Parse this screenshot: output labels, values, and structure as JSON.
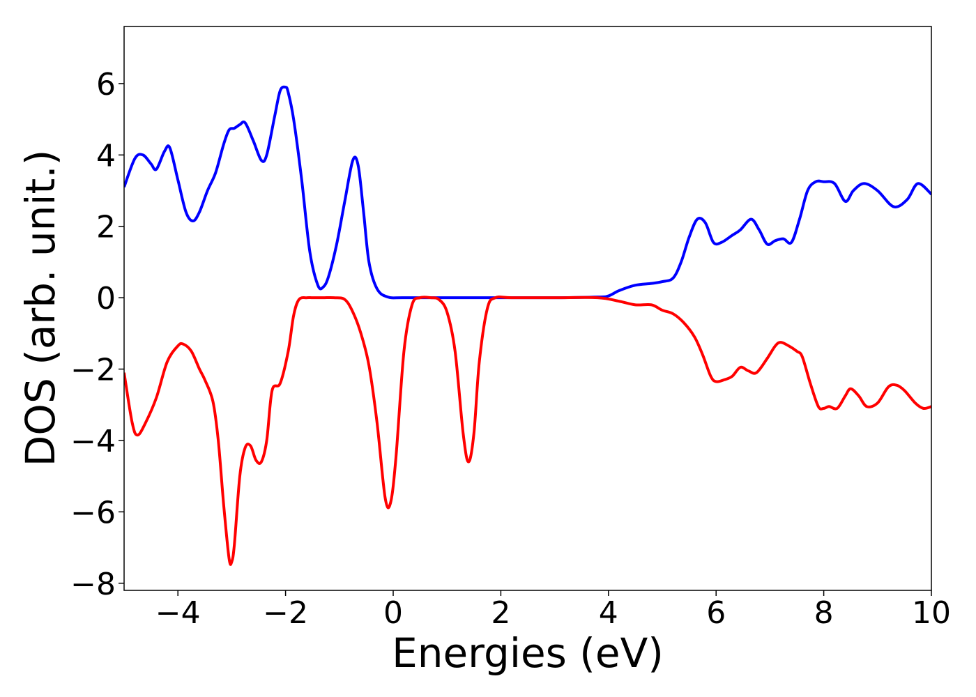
{
  "chart_data": {
    "type": "line",
    "title": "",
    "xlabel": "Energies (eV)",
    "ylabel": "DOS (arb. unit.)",
    "xlim": [
      -5,
      10
    ],
    "ylim": [
      -8.2,
      7.6
    ],
    "xticks": [
      -4,
      -2,
      0,
      2,
      4,
      6,
      8,
      10
    ],
    "yticks": [
      -8,
      -6,
      -4,
      -2,
      0,
      2,
      4,
      6
    ],
    "xtick_labels": [
      "−4",
      "−2",
      "0",
      "2",
      "4",
      "6",
      "8",
      "10"
    ],
    "ytick_labels": [
      "−8",
      "−6",
      "−4",
      "−2",
      "0",
      "2",
      "4",
      "6"
    ],
    "grid": false,
    "legend": false,
    "series": [
      {
        "color": "#0000ff",
        "x": [
          -5.0,
          -4.8,
          -4.65,
          -4.5,
          -4.4,
          -4.25,
          -4.15,
          -4.0,
          -3.85,
          -3.72,
          -3.6,
          -3.45,
          -3.3,
          -3.15,
          -3.05,
          -2.95,
          -2.85,
          -2.75,
          -2.6,
          -2.45,
          -2.35,
          -2.2,
          -2.1,
          -2.0,
          -1.95,
          -1.85,
          -1.7,
          -1.55,
          -1.4,
          -1.3,
          -1.2,
          -1.05,
          -0.9,
          -0.75,
          -0.65,
          -0.55,
          -0.45,
          -0.3,
          -0.1,
          0.2,
          1.0,
          2.0,
          3.0,
          3.8,
          4.0,
          4.2,
          4.5,
          4.8,
          5.0,
          5.2,
          5.35,
          5.5,
          5.65,
          5.8,
          5.95,
          6.1,
          6.3,
          6.45,
          6.65,
          6.8,
          6.95,
          7.1,
          7.25,
          7.4,
          7.55,
          7.7,
          7.85,
          8.0,
          8.2,
          8.4,
          8.55,
          8.75,
          9.0,
          9.3,
          9.55,
          9.75,
          10.0
        ],
        "y": [
          3.1,
          3.9,
          4.0,
          3.75,
          3.6,
          4.1,
          4.2,
          3.3,
          2.4,
          2.15,
          2.4,
          3.0,
          3.5,
          4.3,
          4.7,
          4.75,
          4.85,
          4.9,
          4.4,
          3.85,
          4.0,
          5.1,
          5.8,
          5.9,
          5.75,
          5.0,
          3.3,
          1.3,
          0.35,
          0.3,
          0.6,
          1.5,
          2.7,
          3.85,
          3.7,
          2.4,
          1.0,
          0.25,
          0.02,
          0.0,
          0.0,
          0.0,
          0.0,
          0.02,
          0.05,
          0.2,
          0.35,
          0.4,
          0.45,
          0.55,
          1.0,
          1.7,
          2.2,
          2.1,
          1.55,
          1.55,
          1.75,
          1.9,
          2.2,
          1.9,
          1.5,
          1.6,
          1.65,
          1.55,
          2.2,
          3.0,
          3.25,
          3.25,
          3.2,
          2.7,
          3.0,
          3.2,
          3.0,
          2.55,
          2.75,
          3.2,
          2.9
        ]
      },
      {
        "color": "#ff0000",
        "x": [
          -5.0,
          -4.85,
          -4.75,
          -4.6,
          -4.4,
          -4.2,
          -4.0,
          -3.9,
          -3.75,
          -3.6,
          -3.5,
          -3.35,
          -3.25,
          -3.15,
          -3.05,
          -3.0,
          -2.95,
          -2.85,
          -2.75,
          -2.65,
          -2.55,
          -2.45,
          -2.35,
          -2.25,
          -2.1,
          -1.95,
          -1.85,
          -1.75,
          -1.6,
          -1.5,
          -1.3,
          -1.1,
          -0.9,
          -0.75,
          -0.6,
          -0.45,
          -0.3,
          -0.15,
          -0.05,
          0.05,
          0.2,
          0.35,
          0.5,
          0.7,
          0.85,
          1.0,
          1.15,
          1.3,
          1.4,
          1.5,
          1.6,
          1.75,
          1.9,
          2.2,
          3.0,
          3.8,
          4.2,
          4.5,
          4.8,
          5.0,
          5.2,
          5.4,
          5.6,
          5.75,
          5.9,
          6.0,
          6.15,
          6.3,
          6.45,
          6.6,
          6.75,
          6.95,
          7.1,
          7.2,
          7.35,
          7.5,
          7.6,
          7.75,
          7.9,
          8.0,
          8.1,
          8.25,
          8.4,
          8.5,
          8.65,
          8.8,
          9.0,
          9.2,
          9.35,
          9.5,
          9.7,
          9.85,
          10.0
        ],
        "y": [
          -2.1,
          -3.5,
          -3.85,
          -3.5,
          -2.8,
          -1.8,
          -1.35,
          -1.3,
          -1.5,
          -2.0,
          -2.3,
          -2.9,
          -4.0,
          -5.8,
          -7.3,
          -7.4,
          -6.9,
          -5.0,
          -4.2,
          -4.15,
          -4.55,
          -4.6,
          -4.0,
          -2.6,
          -2.4,
          -1.5,
          -0.5,
          -0.05,
          0.0,
          0.0,
          0.0,
          0.0,
          -0.05,
          -0.4,
          -1.0,
          -1.9,
          -3.5,
          -5.6,
          -5.75,
          -4.5,
          -1.5,
          -0.2,
          0.0,
          0.0,
          -0.05,
          -0.4,
          -1.5,
          -3.8,
          -4.6,
          -3.8,
          -1.8,
          -0.3,
          0.0,
          0.0,
          0.0,
          0.0,
          -0.1,
          -0.2,
          -0.2,
          -0.35,
          -0.45,
          -0.7,
          -1.1,
          -1.6,
          -2.2,
          -2.35,
          -2.3,
          -2.2,
          -1.95,
          -2.05,
          -2.1,
          -1.7,
          -1.35,
          -1.25,
          -1.35,
          -1.5,
          -1.65,
          -2.4,
          -3.05,
          -3.1,
          -3.05,
          -3.1,
          -2.75,
          -2.55,
          -2.75,
          -3.05,
          -2.95,
          -2.5,
          -2.45,
          -2.6,
          -2.95,
          -3.1,
          -3.05
        ]
      }
    ]
  }
}
